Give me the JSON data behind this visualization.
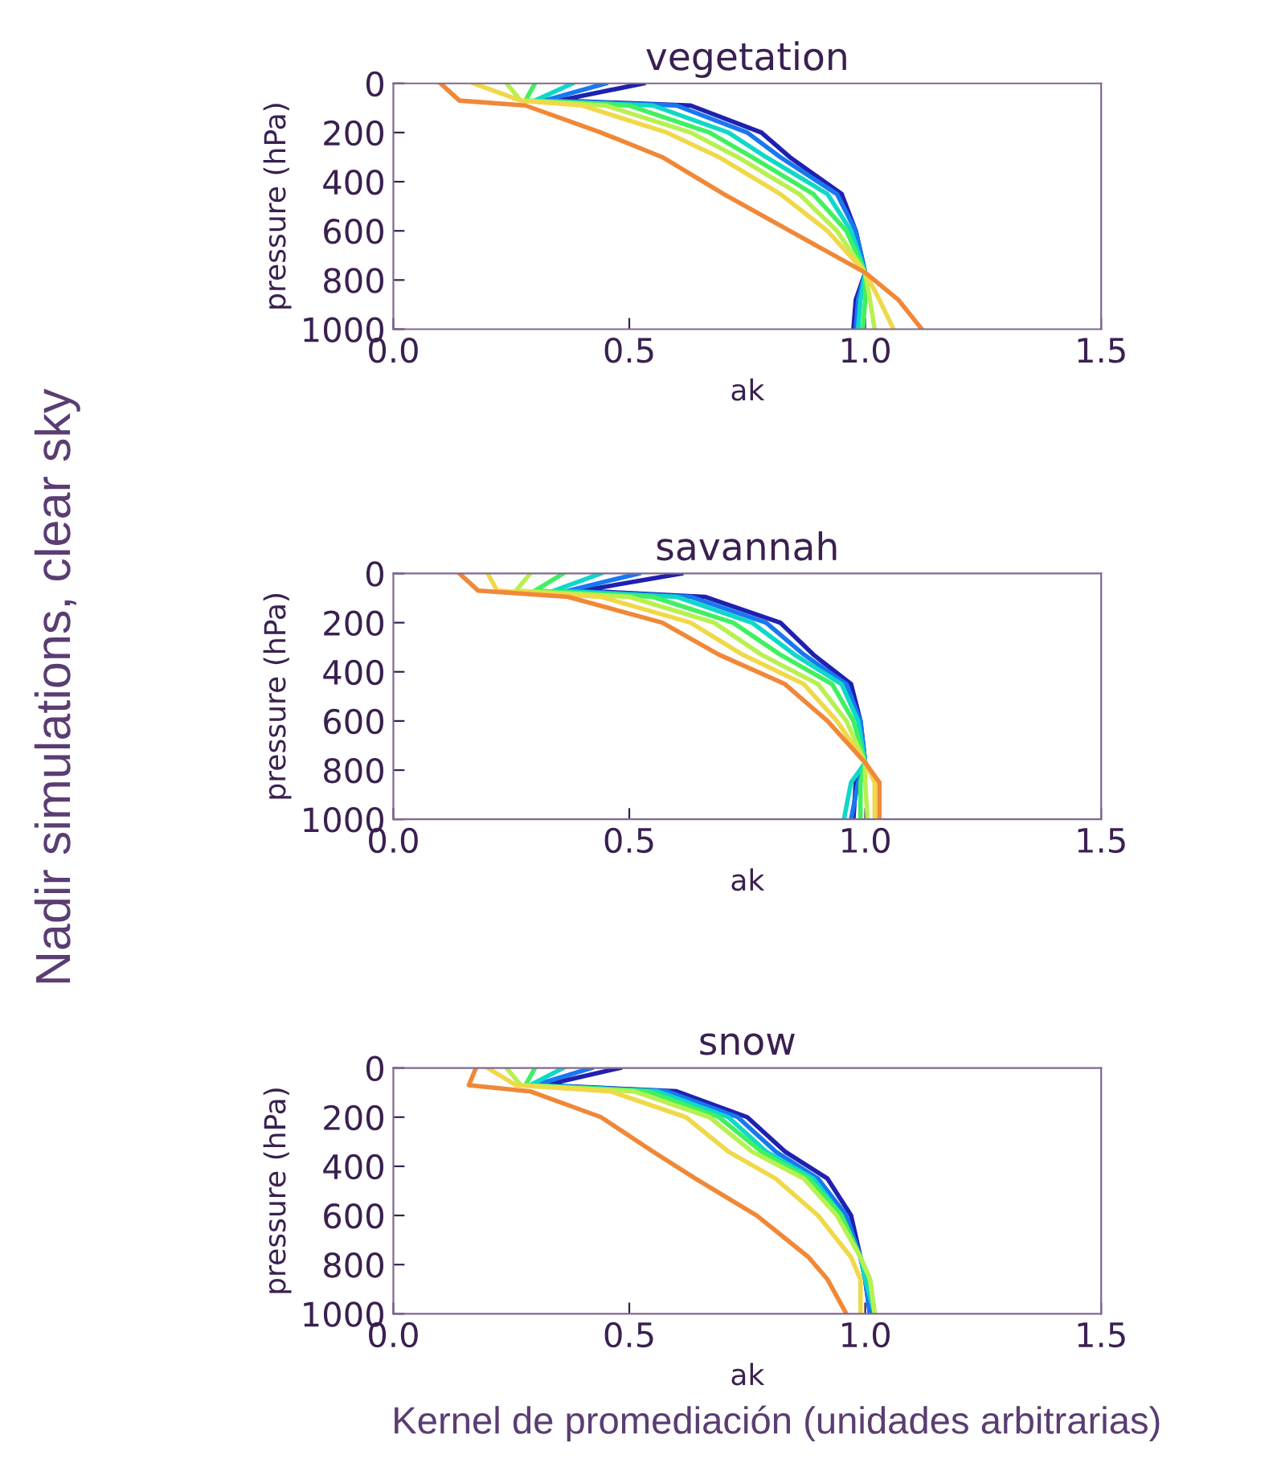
{
  "chart_data": [
    {
      "type": "line",
      "title": "vegetation",
      "xlabel": "ak",
      "ylabel": "pressure (hPa)",
      "xlim": [
        0,
        1.5
      ],
      "ylim": [
        1000,
        0
      ],
      "xticks": [
        {
          "value": 0,
          "label": "0.0"
        },
        {
          "value": 0.5,
          "label": "0.5"
        },
        {
          "value": 1,
          "label": "1.0"
        },
        {
          "value": 1.5,
          "label": "1.5"
        }
      ],
      "yticks": [
        0,
        200,
        400,
        600,
        800,
        1000
      ],
      "annotations": [
        "Nadir simulations, clear sky"
      ],
      "series": [
        {
          "color": "#2020b0",
          "x": [
            0.53,
            0.35,
            0.63,
            0.78,
            0.84,
            0.95,
            0.98,
            1.0,
            0.98,
            0.975
          ],
          "values": [
            0,
            70,
            90,
            200,
            300,
            450,
            600,
            770,
            880,
            1000
          ]
        },
        {
          "color": "#1878f0",
          "x": [
            0.45,
            0.32,
            0.6,
            0.75,
            0.82,
            0.94,
            0.98,
            1.0,
            0.985,
            0.98
          ],
          "values": [
            0,
            70,
            90,
            200,
            300,
            450,
            600,
            770,
            880,
            1000
          ]
        },
        {
          "color": "#10d8c8",
          "x": [
            0.38,
            0.3,
            0.55,
            0.71,
            0.79,
            0.92,
            0.97,
            1.0,
            0.99,
            0.985
          ],
          "values": [
            0,
            70,
            90,
            200,
            300,
            450,
            600,
            770,
            880,
            1000
          ]
        },
        {
          "color": "#40f060",
          "x": [
            0.3,
            0.28,
            0.5,
            0.67,
            0.76,
            0.89,
            0.96,
            1.0,
            1.0,
            0.995
          ],
          "values": [
            0,
            70,
            90,
            200,
            300,
            450,
            600,
            770,
            880,
            1000
          ]
        },
        {
          "color": "#b8f050",
          "x": [
            0.24,
            0.27,
            0.45,
            0.63,
            0.73,
            0.86,
            0.94,
            1.0,
            1.01,
            1.02
          ],
          "values": [
            0,
            70,
            90,
            200,
            300,
            450,
            600,
            770,
            880,
            1000
          ]
        },
        {
          "color": "#f0d848",
          "x": [
            0.17,
            0.27,
            0.4,
            0.58,
            0.69,
            0.82,
            0.92,
            1.0,
            1.03,
            1.06
          ],
          "values": [
            0,
            70,
            90,
            200,
            300,
            450,
            600,
            770,
            880,
            1000
          ]
        },
        {
          "color": "#f08838",
          "x": [
            0.1,
            0.14,
            0.28,
            0.44,
            0.57,
            0.7,
            0.84,
            1.0,
            1.07,
            1.12
          ],
          "values": [
            0,
            70,
            90,
            200,
            300,
            450,
            600,
            770,
            880,
            1000
          ]
        }
      ]
    },
    {
      "type": "line",
      "title": "savannah",
      "xlabel": "ak",
      "ylabel": "pressure (hPa)",
      "xlim": [
        0,
        1.5
      ],
      "ylim": [
        1000,
        0
      ],
      "xticks": [
        {
          "value": 0,
          "label": "0.0"
        },
        {
          "value": 0.5,
          "label": "0.5"
        },
        {
          "value": 1,
          "label": "1.0"
        },
        {
          "value": 1.5,
          "label": "1.5"
        }
      ],
      "yticks": [
        0,
        200,
        400,
        600,
        800,
        1000
      ],
      "series": [
        {
          "color": "#2020b0",
          "x": [
            0.61,
            0.4,
            0.66,
            0.82,
            0.89,
            0.97,
            0.99,
            1.0,
            0.98,
            0.975
          ],
          "values": [
            0,
            70,
            95,
            200,
            330,
            450,
            600,
            770,
            850,
            1000
          ]
        },
        {
          "color": "#1878f0",
          "x": [
            0.52,
            0.37,
            0.63,
            0.79,
            0.87,
            0.96,
            0.99,
            1.0,
            0.985,
            0.97
          ],
          "values": [
            0,
            70,
            95,
            200,
            330,
            450,
            600,
            770,
            850,
            1000
          ]
        },
        {
          "color": "#10d8c8",
          "x": [
            0.44,
            0.34,
            0.6,
            0.76,
            0.85,
            0.95,
            0.985,
            1.0,
            0.97,
            0.955
          ],
          "values": [
            0,
            70,
            95,
            200,
            330,
            450,
            600,
            770,
            850,
            1000
          ]
        },
        {
          "color": "#40f060",
          "x": [
            0.36,
            0.3,
            0.55,
            0.72,
            0.82,
            0.93,
            0.975,
            1.0,
            0.99,
            0.99
          ],
          "values": [
            0,
            70,
            95,
            200,
            330,
            450,
            600,
            770,
            850,
            1000
          ]
        },
        {
          "color": "#b8f050",
          "x": [
            0.29,
            0.26,
            0.5,
            0.68,
            0.78,
            0.9,
            0.96,
            1.0,
            1.0,
            1.005
          ],
          "values": [
            0,
            70,
            95,
            200,
            330,
            450,
            600,
            770,
            850,
            1000
          ]
        },
        {
          "color": "#f0d848",
          "x": [
            0.2,
            0.22,
            0.44,
            0.63,
            0.74,
            0.87,
            0.94,
            1.0,
            1.02,
            1.02
          ],
          "values": [
            0,
            70,
            95,
            200,
            330,
            450,
            600,
            770,
            850,
            1000
          ]
        },
        {
          "color": "#f08838",
          "x": [
            0.14,
            0.18,
            0.37,
            0.57,
            0.69,
            0.83,
            0.92,
            1.0,
            1.03,
            1.03
          ],
          "values": [
            0,
            70,
            95,
            200,
            330,
            450,
            600,
            770,
            850,
            1000
          ]
        }
      ]
    },
    {
      "type": "line",
      "title": "snow",
      "xlabel": "ak",
      "ylabel": "pressure (hPa)",
      "xlim": [
        0,
        1.5
      ],
      "ylim": [
        1000,
        0
      ],
      "xticks": [
        {
          "value": 0,
          "label": "0.0"
        },
        {
          "value": 0.5,
          "label": "0.5"
        },
        {
          "value": 1,
          "label": "1.0"
        },
        {
          "value": 1.5,
          "label": "1.5"
        }
      ],
      "yticks": [
        0,
        200,
        400,
        600,
        800,
        1000
      ],
      "annotations": [
        "Kernel de promediación (unidades arbitrarias)"
      ],
      "series": [
        {
          "color": "#2020b0",
          "x": [
            0.48,
            0.32,
            0.6,
            0.75,
            0.83,
            0.92,
            0.97,
            0.99,
            1.0,
            1.01
          ],
          "values": [
            0,
            70,
            95,
            200,
            340,
            450,
            600,
            770,
            860,
            1000
          ]
        },
        {
          "color": "#1878f0",
          "x": [
            0.42,
            0.3,
            0.58,
            0.73,
            0.81,
            0.9,
            0.96,
            0.99,
            1.0,
            1.01
          ],
          "values": [
            0,
            70,
            95,
            200,
            340,
            450,
            600,
            770,
            860,
            1000
          ]
        },
        {
          "color": "#10d8c8",
          "x": [
            0.36,
            0.29,
            0.56,
            0.71,
            0.79,
            0.89,
            0.95,
            0.99,
            1.0,
            1.02
          ],
          "values": [
            0,
            70,
            95,
            200,
            340,
            450,
            600,
            770,
            860,
            1000
          ]
        },
        {
          "color": "#40f060",
          "x": [
            0.3,
            0.28,
            0.54,
            0.69,
            0.78,
            0.88,
            0.95,
            0.99,
            1.01,
            1.02
          ],
          "values": [
            0,
            70,
            95,
            200,
            340,
            450,
            600,
            770,
            860,
            1000
          ]
        },
        {
          "color": "#b8f050",
          "x": [
            0.24,
            0.27,
            0.51,
            0.67,
            0.76,
            0.87,
            0.94,
            0.99,
            1.01,
            1.02
          ],
          "values": [
            0,
            70,
            95,
            200,
            340,
            450,
            600,
            770,
            860,
            1000
          ]
        },
        {
          "color": "#f0d848",
          "x": [
            0.2,
            0.26,
            0.46,
            0.62,
            0.71,
            0.81,
            0.9,
            0.97,
            0.99,
            0.99
          ],
          "values": [
            0,
            70,
            95,
            200,
            340,
            450,
            600,
            770,
            860,
            1000
          ]
        },
        {
          "color": "#f08838",
          "x": [
            0.175,
            0.16,
            0.29,
            0.44,
            0.55,
            0.64,
            0.77,
            0.88,
            0.92,
            0.96
          ],
          "values": [
            0,
            70,
            95,
            200,
            340,
            450,
            600,
            770,
            860,
            1000
          ]
        }
      ]
    }
  ]
}
